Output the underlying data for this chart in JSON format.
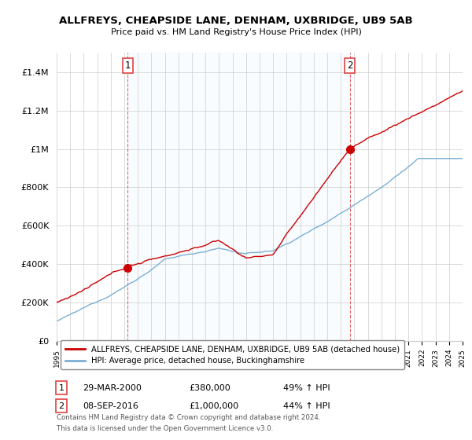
{
  "title": "ALLFREYS, CHEAPSIDE LANE, DENHAM, UXBRIDGE, UB9 5AB",
  "subtitle": "Price paid vs. HM Land Registry's House Price Index (HPI)",
  "ylim": [
    0,
    1500000
  ],
  "yticks": [
    0,
    200000,
    400000,
    600000,
    800000,
    1000000,
    1200000,
    1400000
  ],
  "ytick_labels": [
    "£0",
    "£200K",
    "£400K",
    "£600K",
    "£800K",
    "£1M",
    "£1.2M",
    "£1.4M"
  ],
  "sale1_year": 2000.25,
  "sale1_value": 380000,
  "sale2_year": 2016.67,
  "sale2_value": 1000000,
  "legend_line1": "ALLFREYS, CHEAPSIDE LANE, DENHAM, UXBRIDGE, UB9 5AB (detached house)",
  "legend_line2": "HPI: Average price, detached house, Buckinghamshire",
  "table_row1_num": "1",
  "table_row1_date": "29-MAR-2000",
  "table_row1_price": "£380,000",
  "table_row1_hpi": "49% ↑ HPI",
  "table_row2_num": "2",
  "table_row2_date": "08-SEP-2016",
  "table_row2_price": "£1,000,000",
  "table_row2_hpi": "44% ↑ HPI",
  "footnote1": "Contains HM Land Registry data © Crown copyright and database right 2024.",
  "footnote2": "This data is licensed under the Open Government Licence v3.0.",
  "price_color": "#cc0000",
  "hpi_color": "#7bafd4",
  "shade_color": "#ddeeff",
  "vline_color": "#dd4444",
  "background_color": "#ffffff",
  "grid_color": "#cccccc"
}
